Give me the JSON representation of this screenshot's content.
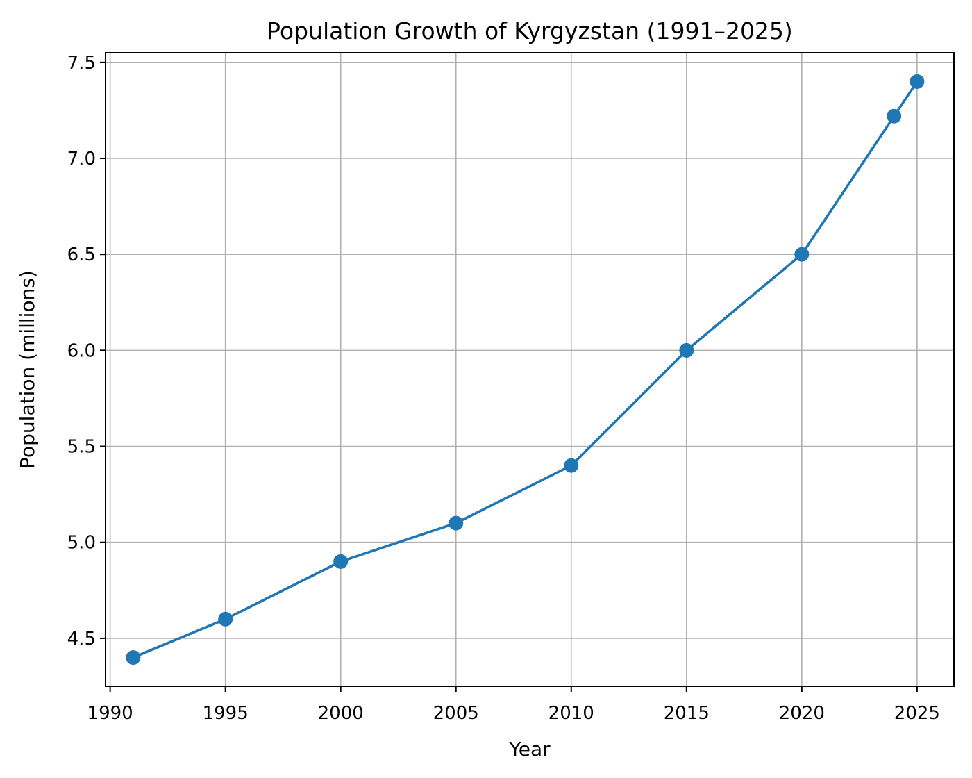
{
  "chart_data": {
    "type": "line",
    "title": "Population Growth of Kyrgyzstan (1991–2025)",
    "xlabel": "Year",
    "ylabel": "Population (millions)",
    "xlim": [
      1989.8,
      2026.6
    ],
    "ylim": [
      4.25,
      7.55
    ],
    "xticks": [
      1990,
      1995,
      2000,
      2005,
      2010,
      2015,
      2020,
      2025
    ],
    "xtick_labels": [
      "1990",
      "1995",
      "2000",
      "2005",
      "2010",
      "2015",
      "2020",
      "2025"
    ],
    "yticks": [
      4.5,
      5.0,
      5.5,
      6.0,
      6.5,
      7.0,
      7.5
    ],
    "ytick_labels": [
      "4.5",
      "5.0",
      "5.5",
      "6.0",
      "6.5",
      "7.0",
      "7.5"
    ],
    "grid": true,
    "legend": "none",
    "series": [
      {
        "color": "#1f77b4",
        "marker": "circle",
        "x": [
          1991,
          1995,
          2000,
          2005,
          2010,
          2015,
          2020,
          2024,
          2025
        ],
        "y": [
          4.4,
          4.6,
          4.9,
          5.1,
          5.4,
          6.0,
          6.5,
          7.22,
          7.4
        ]
      }
    ]
  }
}
